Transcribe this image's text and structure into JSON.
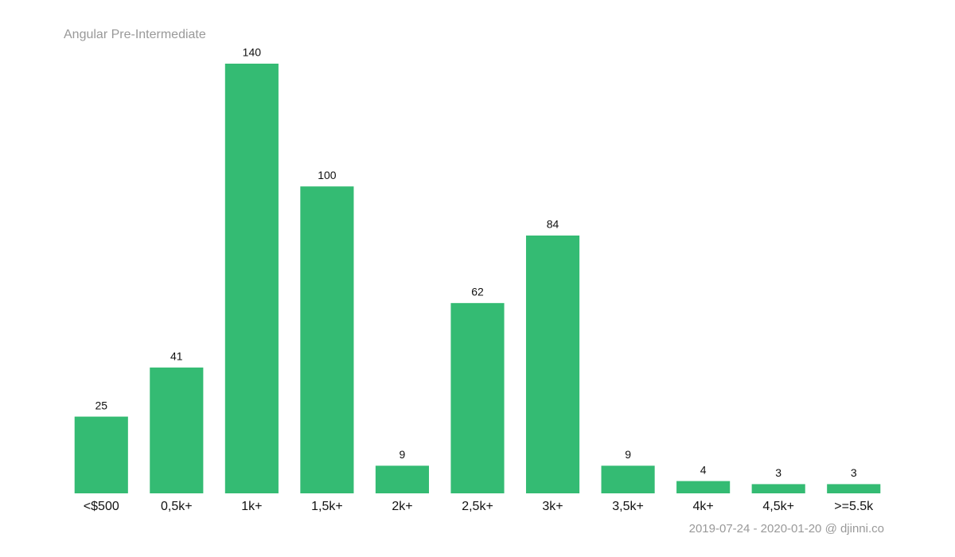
{
  "chart_data": {
    "type": "bar",
    "title": "Angular Pre-Intermediate",
    "categories": [
      "<$500",
      "0,5k+",
      "1k+",
      "1,5k+",
      "2k+",
      "2,5k+",
      "3k+",
      "3,5k+",
      "4k+",
      "4,5k+",
      ">=5.5k"
    ],
    "values": [
      25,
      41,
      140,
      100,
      9,
      62,
      84,
      9,
      4,
      3,
      3
    ],
    "color": "#34bb73",
    "ylim": [
      0,
      140
    ],
    "footer": "2019-07-24 - 2020-01-20 @ djinni.co"
  }
}
